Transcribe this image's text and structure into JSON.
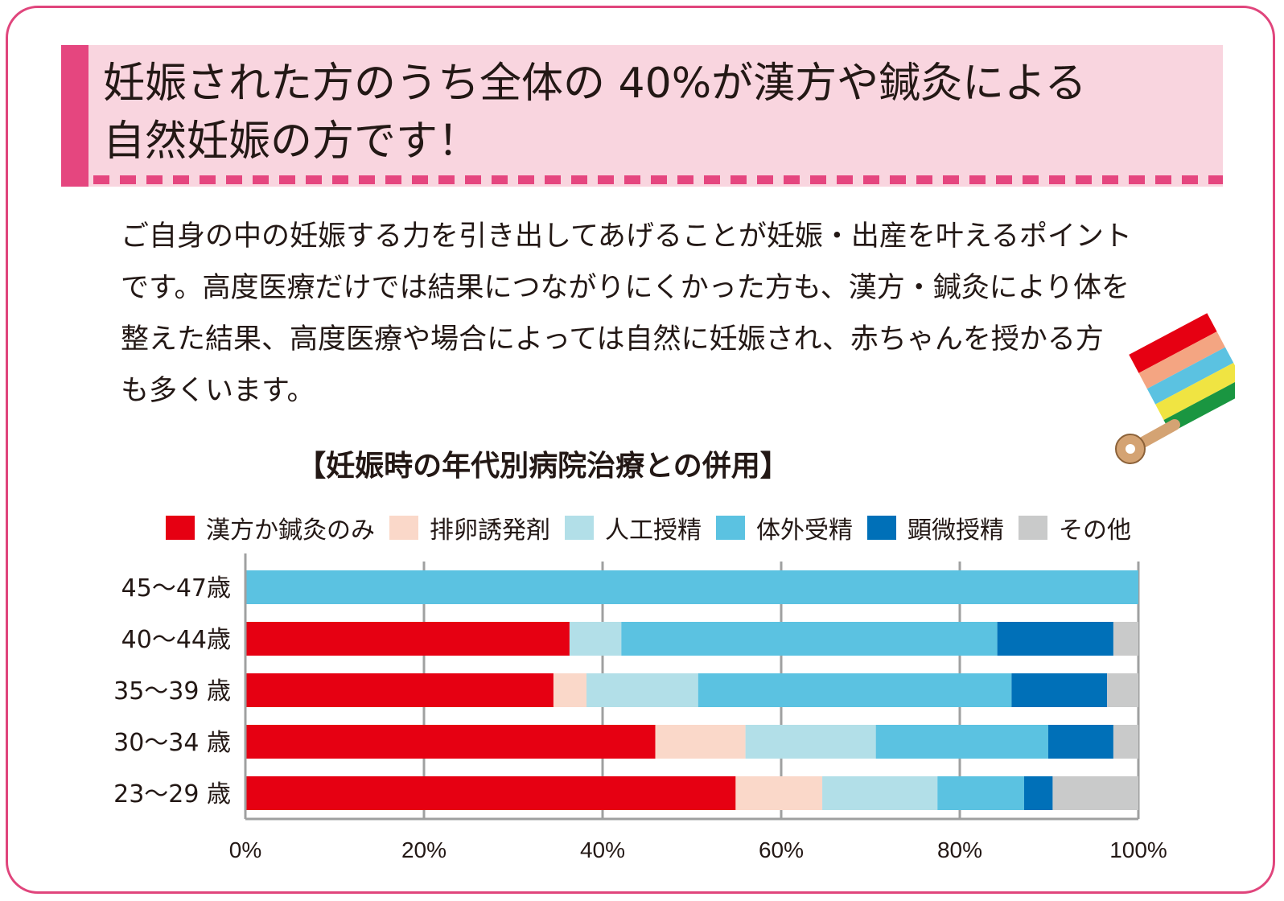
{
  "headline": {
    "line1": "妊娠された方のうち全体の 40%が漢方や鍼灸による",
    "line2": "自然妊娠の方です！"
  },
  "body": {
    "line1": "ご自身の中の妊娠する力を引き出してあげることが妊娠・出産を叶えるポイント",
    "line2": "です。高度医療だけでは結果につながりにくかった方も、漢方・鍼灸により体を",
    "line3": "整えた結果、高度医療や場合によっては自然に妊娠され、赤ちゃんを授かる方",
    "line4": "も多くいます。"
  },
  "chart_data": {
    "type": "bar",
    "orientation": "horizontal",
    "stacked": true,
    "title": "【妊娠時の年代別病院治療との併用】",
    "categories": [
      "45〜47歳",
      "40〜44歳",
      "35〜39 歳",
      "30〜34 歳",
      "23〜29 歳"
    ],
    "series": [
      {
        "name": "漢方か鍼灸のみ",
        "color": "#e60012",
        "values": [
          0,
          36.3,
          34.5,
          45.9,
          54.9
        ]
      },
      {
        "name": "排卵誘発剤",
        "color": "#fad8c9",
        "values": [
          0,
          0,
          3.7,
          10.1,
          9.7
        ]
      },
      {
        "name": "人工授精",
        "color": "#b2dfe8",
        "values": [
          0,
          5.8,
          12.5,
          14.6,
          12.9
        ]
      },
      {
        "name": "体外受精",
        "color": "#5bc2e1",
        "values": [
          100,
          42.1,
          35.1,
          19.3,
          9.7
        ]
      },
      {
        "name": "顕微授精",
        "color": "#0070b8",
        "values": [
          0,
          13.0,
          10.7,
          7.3,
          3.2
        ]
      },
      {
        "name": "その他",
        "color": "#c9caca",
        "values": [
          0,
          2.8,
          3.5,
          2.8,
          9.6
        ]
      }
    ],
    "xticks": [
      "0%",
      "20%",
      "40%",
      "60%",
      "80%",
      "100%"
    ],
    "xlim": [
      0,
      100
    ],
    "grid": true,
    "legend_position": "top"
  },
  "colors": {
    "frame": "#e0457c",
    "headline_bg": "#f9d5df",
    "accent": "#e5467f"
  },
  "decoration": {
    "icon": "rattle-toy-icon"
  }
}
